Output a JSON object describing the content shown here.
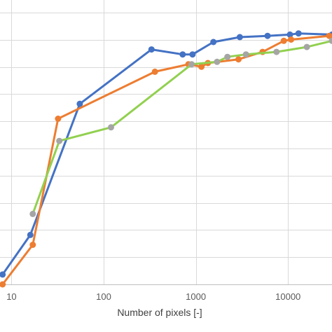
{
  "chart_data": {
    "type": "line",
    "xscale": "log",
    "xlim": [
      7.5,
      30000
    ],
    "ylim": [
      0,
      1.15
    ],
    "grid": true,
    "xlabel": "Number of pixels [-]",
    "ylabel": "",
    "xticks": [
      {
        "value": 10,
        "label": "10"
      },
      {
        "value": 100,
        "label": "100"
      },
      {
        "value": 1000,
        "label": "1000"
      },
      {
        "value": 10000,
        "label": "10000"
      }
    ],
    "series": [
      {
        "color": "#4472C4",
        "x": [
          8,
          16,
          55,
          330,
          720,
          920,
          1550,
          3000,
          6000,
          10500,
          13000,
          30000
        ],
        "y": [
          0.04,
          0.2,
          0.73,
          0.95,
          0.93,
          0.93,
          0.98,
          1.0,
          1.005,
          1.01,
          1.015,
          1.01
        ]
      },
      {
        "color": "#ED7D31",
        "x": [
          8,
          17,
          32,
          360,
          830,
          1150,
          1350,
          2900,
          5300,
          9000,
          10800,
          28000
        ],
        "y": [
          0.0,
          0.16,
          0.67,
          0.86,
          0.89,
          0.88,
          0.895,
          0.91,
          0.94,
          0.985,
          0.99,
          1.005
        ]
      },
      {
        "color": "#92D050",
        "markerColor": "#A5A5A5",
        "x": [
          17,
          33,
          120,
          900,
          1700,
          2200,
          3500,
          7500,
          16000,
          30000
        ],
        "y": [
          0.285,
          0.58,
          0.635,
          0.89,
          0.9,
          0.92,
          0.93,
          0.94,
          0.96,
          0.985
        ]
      }
    ]
  }
}
